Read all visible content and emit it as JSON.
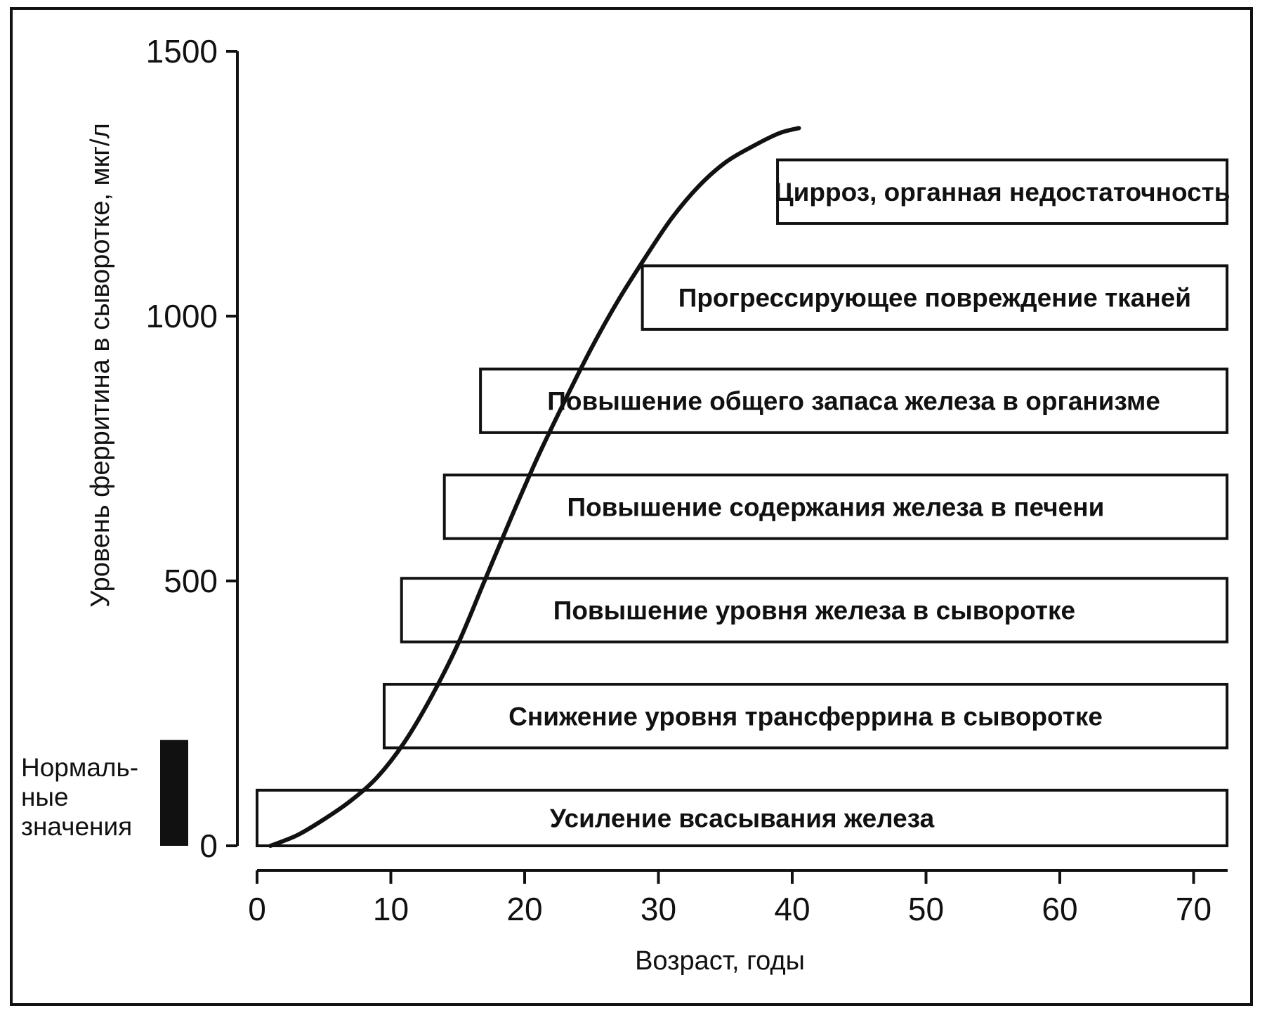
{
  "chart_data": {
    "type": "line",
    "xlabel": "Возраст, годы",
    "ylabel": "Уровень ферритина в сыворотке, мкг/л",
    "xlim": [
      0,
      72
    ],
    "ylim": [
      0,
      1500
    ],
    "x_ticks": [
      0,
      10,
      20,
      30,
      40,
      50,
      60,
      70
    ],
    "y_ticks": [
      0,
      500,
      1000,
      1500
    ],
    "grid": false,
    "series": [
      {
        "x": [
          1,
          3,
          5,
          7,
          9,
          11,
          13,
          15,
          17,
          19,
          21,
          23,
          25,
          27,
          29,
          31,
          33,
          35,
          37,
          39,
          40.5
        ],
        "y": [
          0,
          20,
          50,
          85,
          130,
          195,
          280,
          380,
          500,
          620,
          735,
          840,
          940,
          1030,
          1110,
          1185,
          1245,
          1290,
          1320,
          1345,
          1355
        ]
      }
    ],
    "stages": [
      {
        "label": "Усиление всасывания железа",
        "x_start": 0,
        "x_end": 72.5,
        "y_low": 0,
        "y_high": 105
      },
      {
        "label": "Снижение уровня трансферрина в сыворотке",
        "x_start": 9.5,
        "x_end": 72.5,
        "y_low": 185,
        "y_high": 305
      },
      {
        "label": "Повышение уровня железа в сыворотке",
        "x_start": 10.8,
        "x_end": 72.5,
        "y_low": 385,
        "y_high": 505
      },
      {
        "label": "Повышение содержания железа в печени",
        "x_start": 14,
        "x_end": 72.5,
        "y_low": 580,
        "y_high": 700
      },
      {
        "label": "Повышение общего запаса железа в организме",
        "x_start": 16.7,
        "x_end": 72.5,
        "y_low": 780,
        "y_high": 900
      },
      {
        "label": "Прогрессирующее повреждение тканей",
        "x_start": 28.8,
        "x_end": 72.5,
        "y_low": 975,
        "y_high": 1095
      },
      {
        "label": "Цирроз, органная недостаточность",
        "x_start": 38.9,
        "x_end": 72.5,
        "y_low": 1175,
        "y_high": 1295
      }
    ],
    "normal_range": {
      "label_lines": [
        "Нормаль-",
        "ные",
        "значения"
      ],
      "y_low": 0,
      "y_high": 200
    }
  }
}
